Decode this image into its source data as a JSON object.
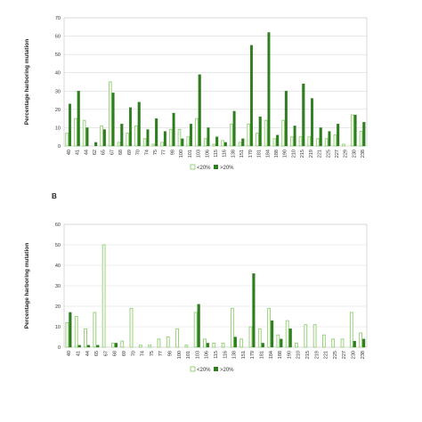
{
  "colors": {
    "low": "#8fce6f",
    "high": "#2e7d1e",
    "grid": "#d9d9d9",
    "frame": "#bfbfbf"
  },
  "chart_data": [
    {
      "type": "bar",
      "panel_label": "",
      "ylabel": "Percentage harboring mutation",
      "ylim": [
        0,
        70
      ],
      "yticks": [
        0,
        10,
        20,
        30,
        40,
        50,
        60,
        70
      ],
      "grid": true,
      "legend": "bottom-center",
      "categories": [
        "40",
        "41",
        "44",
        "62",
        "65",
        "67",
        "68",
        "69",
        "70",
        "74",
        "75",
        "77",
        "98",
        "100",
        "101",
        "103",
        "106",
        "115",
        "116",
        "138",
        "151",
        "179",
        "181",
        "184",
        "188",
        "190",
        "210",
        "215",
        "219",
        "221",
        "225",
        "227",
        "229",
        "230",
        "238"
      ],
      "series": [
        {
          "name": "<20%",
          "values": [
            7,
            15,
            14,
            0,
            11,
            35,
            2,
            7,
            11,
            4,
            1,
            2,
            9,
            9,
            5,
            15,
            4,
            1,
            3,
            12,
            2,
            12,
            7,
            14,
            4,
            14,
            5,
            5,
            5,
            4,
            4,
            6,
            1,
            17,
            8
          ]
        },
        {
          "name": ">20%",
          "values": [
            23,
            30,
            10,
            2,
            9,
            29,
            12,
            21,
            24,
            9,
            15,
            8,
            18,
            4,
            12,
            39,
            10,
            5,
            2,
            19,
            4,
            55,
            16,
            62,
            6,
            30,
            11,
            34,
            26,
            10,
            8,
            12,
            0,
            17,
            13
          ]
        }
      ]
    },
    {
      "type": "bar",
      "panel_label": "B",
      "ylabel": "Percentage harboring mutation",
      "ylim": [
        0,
        60
      ],
      "yticks": [
        0,
        10,
        20,
        30,
        40,
        50,
        60
      ],
      "grid": true,
      "legend": "bottom-center",
      "categories": [
        "40",
        "41",
        "44",
        "65",
        "67",
        "68",
        "69",
        "70",
        "74",
        "75",
        "77",
        "98",
        "100",
        "101",
        "103",
        "106",
        "115",
        "116",
        "138",
        "151",
        "179",
        "181",
        "184",
        "188",
        "190",
        "210",
        "215",
        "219",
        "221",
        "225",
        "227",
        "230",
        "238"
      ],
      "series": [
        {
          "name": "<20%",
          "values": [
            12,
            15,
            9,
            17,
            50,
            2,
            3,
            19,
            1,
            1,
            4,
            5,
            9,
            1,
            17,
            4,
            2,
            2,
            19,
            4,
            10,
            9,
            19,
            6,
            13,
            2,
            11,
            11,
            6,
            4,
            4,
            17,
            7
          ]
        },
        {
          "name": ">20%",
          "values": [
            17,
            1,
            1,
            1,
            0,
            2,
            0,
            0,
            0,
            0,
            0,
            0,
            0,
            0,
            21,
            2,
            0,
            0,
            5,
            0,
            36,
            2,
            13,
            4,
            9,
            0,
            0,
            0,
            0,
            0,
            0,
            3,
            4
          ]
        }
      ]
    }
  ]
}
